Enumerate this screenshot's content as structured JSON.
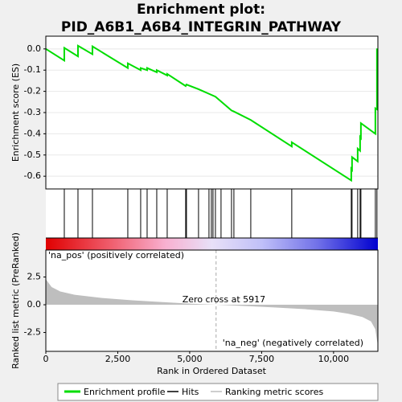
{
  "chart_data": [
    {
      "type": "line",
      "title": [
        "Enrichment plot:",
        "PID_A6B1_A6B4_INTEGRIN_PATHWAY"
      ],
      "ylabel": "Enrichment score (ES)",
      "xlim": [
        0,
        11540
      ],
      "ylim": [
        -0.66,
        0.06
      ],
      "yticks": [
        {
          "value": 0,
          "label": "0.0"
        },
        -0.1,
        -0.2,
        -0.3,
        -0.4,
        -0.5,
        -0.6
      ],
      "grid": true,
      "series": [
        {
          "name": "Enrichment profile",
          "color": "#00dd00",
          "x": [
            0,
            642,
            642,
            1117,
            1117,
            1620,
            1620,
            2849,
            2849,
            3296,
            3296,
            3520,
            3520,
            3855,
            3855,
            4218,
            4218,
            4860,
            4888,
            5307,
            5894,
            6453,
            6536,
            7123,
            8547,
            8547,
            10615,
            10615,
            10642,
            10642,
            10838,
            10838,
            10922,
            10922,
            10950,
            10950,
            11453,
            11453,
            11508,
            11508
          ],
          "values": [
            0,
            -0.055,
            0.005,
            -0.035,
            0.015,
            -0.025,
            0.012,
            -0.09,
            -0.068,
            -0.1,
            -0.09,
            -0.1,
            -0.09,
            -0.11,
            -0.1,
            -0.125,
            -0.118,
            -0.175,
            -0.168,
            -0.19,
            -0.225,
            -0.29,
            -0.295,
            -0.335,
            -0.46,
            -0.44,
            -0.62,
            -0.565,
            -0.57,
            -0.51,
            -0.53,
            -0.47,
            -0.48,
            -0.415,
            -0.42,
            -0.35,
            -0.4,
            -0.28,
            -0.285,
            0.002
          ]
        }
      ],
      "hits": {
        "name": "Hits",
        "color": "#000000",
        "x": [
          642,
          1117,
          1620,
          2849,
          3296,
          3520,
          3855,
          4218,
          4860,
          4888,
          5307,
          5670,
          5754,
          5810,
          5894,
          6089,
          6453,
          6536,
          7123,
          8547,
          10615,
          10642,
          10838,
          10922,
          10950,
          11453,
          11508
        ]
      }
    },
    {
      "type": "area",
      "ylabel": "Ranked list metric (PreRanked)",
      "xlabel": "Rank in Ordered Dataset",
      "xlim": [
        0,
        11540
      ],
      "xticks": [
        0,
        {
          "value": 2500,
          "label": "2,500"
        },
        {
          "value": 5000,
          "label": "5,000"
        },
        {
          "value": 7500,
          "label": "7,500"
        },
        {
          "value": 10000,
          "label": "10,000"
        }
      ],
      "ylim": [
        -4.2,
        4.93
      ],
      "yticks": [
        2.5,
        {
          "value": 0,
          "label": "0.0"
        },
        -2.5
      ],
      "series": [
        {
          "name": "Ranking metric scores",
          "color": "#bebebe",
          "x": [
            0,
            200,
            500,
            1000,
            2000,
            3000,
            4000,
            5000,
            5917,
            7000,
            8000,
            9000,
            10000,
            10500,
            11000,
            11300,
            11450,
            11540
          ],
          "values": [
            2.3,
            1.6,
            1.2,
            0.9,
            0.6,
            0.4,
            0.25,
            0.1,
            0,
            -0.12,
            -0.25,
            -0.4,
            -0.6,
            -0.8,
            -1.1,
            -1.5,
            -2.2,
            -3.7
          ]
        }
      ],
      "annotations": [
        {
          "text": "'na_pos' (positively correlated)",
          "color": "#cc0000"
        },
        {
          "text": "Zero cross at 5917",
          "x": 5917
        },
        {
          "text": "'na_neg' (negatively correlated)",
          "color": "#0000cc"
        }
      ]
    }
  ]
}
